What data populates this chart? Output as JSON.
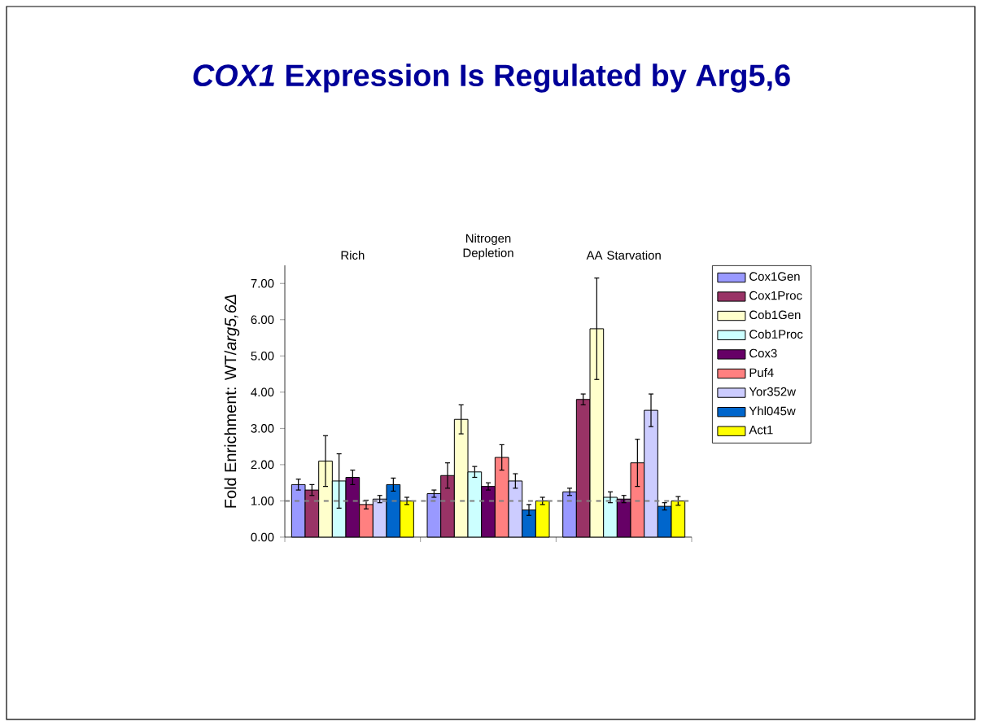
{
  "chart_data": {
    "type": "bar",
    "title": "*COX1* Expression Is Regulated by Arg5,6",
    "ylabel": "Fold Enrichment: WT/*arg5,6Δ*",
    "categories": [
      "Rich",
      "Nitrogen Depletion",
      "AA Starvation"
    ],
    "series": [
      {
        "name": "Cox1Gen",
        "color": "#9999ff",
        "values": [
          1.45,
          1.2,
          1.25
        ],
        "errors": [
          0.15,
          0.1,
          0.1
        ]
      },
      {
        "name": "Cox1Proc",
        "color": "#993366",
        "values": [
          1.3,
          1.7,
          3.8
        ],
        "errors": [
          0.15,
          0.35,
          0.15
        ]
      },
      {
        "name": "Cob1Gen",
        "color": "#ffffcc",
        "values": [
          2.1,
          3.25,
          5.75
        ],
        "errors": [
          0.7,
          0.4,
          1.4
        ]
      },
      {
        "name": "Cob1Proc",
        "color": "#ccffff",
        "values": [
          1.55,
          1.8,
          1.1
        ],
        "errors": [
          0.75,
          0.15,
          0.15
        ]
      },
      {
        "name": "Cox3",
        "color": "#660066",
        "values": [
          1.65,
          1.4,
          1.05
        ],
        "errors": [
          0.2,
          0.1,
          0.1
        ]
      },
      {
        "name": "Puf4",
        "color": "#ff8080",
        "values": [
          0.9,
          2.2,
          2.05
        ],
        "errors": [
          0.12,
          0.35,
          0.65
        ]
      },
      {
        "name": "Yor352w",
        "color": "#ccccff",
        "values": [
          1.05,
          1.55,
          3.5
        ],
        "errors": [
          0.1,
          0.2,
          0.45
        ]
      },
      {
        "name": "Yhl045w",
        "color": "#0066cc",
        "values": [
          1.45,
          0.75,
          0.85
        ],
        "errors": [
          0.18,
          0.15,
          0.1
        ]
      },
      {
        "name": "Act1",
        "color": "#ffff00",
        "values": [
          1.0,
          1.0,
          1.0
        ],
        "errors": [
          0.1,
          0.1,
          0.12
        ]
      }
    ],
    "ylim": [
      0,
      7.5
    ],
    "yticks": [
      {
        "value": 0,
        "label": "0.00"
      },
      {
        "value": 1,
        "label": "1.00"
      },
      {
        "value": 2,
        "label": "2.00"
      },
      {
        "value": 3,
        "label": "3.00"
      },
      {
        "value": 4,
        "label": "4.00"
      },
      {
        "value": 5,
        "label": "5.00"
      },
      {
        "value": 6,
        "label": "6.00"
      },
      {
        "value": 7,
        "label": "7.00"
      }
    ],
    "ref_lines": [
      {
        "axis": "y",
        "value": 1,
        "color": "#808080",
        "line_style": "dashed"
      }
    ],
    "grid": false,
    "legend": "right"
  }
}
